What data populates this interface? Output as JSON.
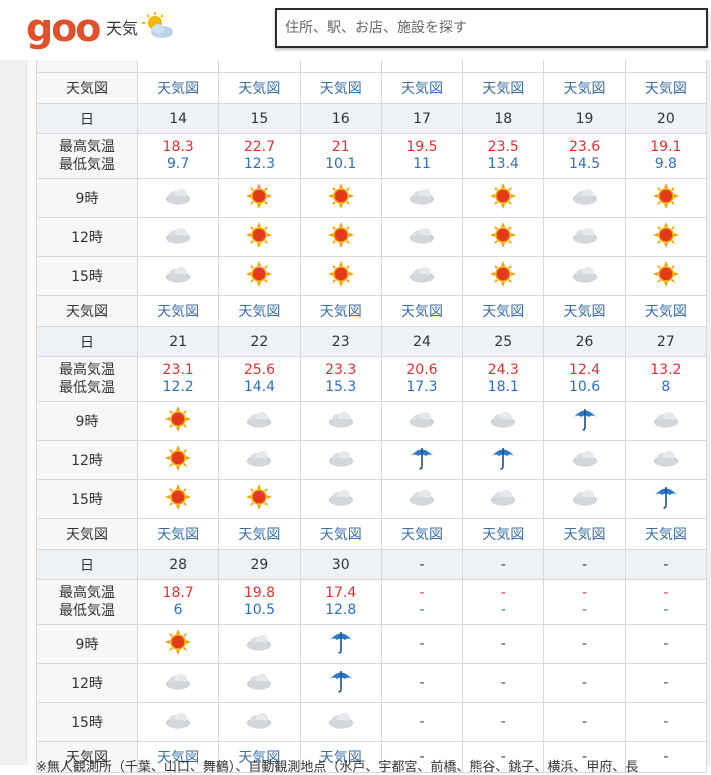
{
  "header": {
    "logo": "goo",
    "section": "天気",
    "search_placeholder": "住所、駅、お店、施設を探す"
  },
  "map_label": "天気図",
  "labels": {
    "day": "日",
    "high": "最高気温",
    "low": "最低気温",
    "h9": "9時",
    "h12": "12時",
    "h15": "15時",
    "map": "天気図"
  },
  "weeks": [
    {
      "days": [
        "14",
        "15",
        "16",
        "17",
        "18",
        "19",
        "20"
      ],
      "high": [
        "18.3",
        "22.7",
        "21",
        "19.5",
        "23.5",
        "23.6",
        "19.1"
      ],
      "low": [
        "9.7",
        "12.3",
        "10.1",
        "11",
        "13.4",
        "14.5",
        "9.8"
      ],
      "h9": [
        "cloud-icon",
        "sun-icon",
        "sun-icon",
        "cloud-icon",
        "sun-icon",
        "cloud-icon",
        "sun-icon"
      ],
      "h12": [
        "cloud-icon",
        "sun-icon",
        "sun-icon",
        "cloud-icon",
        "sun-icon",
        "cloud-icon",
        "sun-icon"
      ],
      "h15": [
        "cloud-icon",
        "sun-icon",
        "sun-icon",
        "cloud-icon",
        "sun-icon",
        "cloud-icon",
        "sun-icon"
      ],
      "map": [
        "天気図",
        "天気図",
        "天気図",
        "天気図",
        "天気図",
        "天気図",
        "天気図"
      ]
    },
    {
      "days": [
        "21",
        "22",
        "23",
        "24",
        "25",
        "26",
        "27"
      ],
      "high": [
        "23.1",
        "25.6",
        "23.3",
        "20.6",
        "24.3",
        "12.4",
        "13.2"
      ],
      "low": [
        "12.2",
        "14.4",
        "15.3",
        "17.3",
        "18.1",
        "10.6",
        "8"
      ],
      "h9": [
        "sun-icon",
        "cloud-icon",
        "cloud-icon",
        "cloud-icon",
        "cloud-icon",
        "umbrella-icon",
        "cloud-icon"
      ],
      "h12": [
        "sun-icon",
        "cloud-icon",
        "cloud-icon",
        "umbrella-icon",
        "umbrella-icon",
        "cloud-icon",
        "cloud-icon"
      ],
      "h15": [
        "sun-icon",
        "sun-icon",
        "cloud-icon",
        "cloud-icon",
        "cloud-icon",
        "cloud-icon",
        "umbrella-icon"
      ],
      "map": [
        "天気図",
        "天気図",
        "天気図",
        "天気図",
        "天気図",
        "天気図",
        "天気図"
      ]
    },
    {
      "days": [
        "28",
        "29",
        "30",
        "-",
        "-",
        "-",
        "-"
      ],
      "high": [
        "18.7",
        "19.8",
        "17.4",
        "-",
        "-",
        "-",
        "-"
      ],
      "low": [
        "6",
        "10.5",
        "12.8",
        "-",
        "-",
        "-",
        "-"
      ],
      "h9": [
        "sun-icon",
        "cloud-icon",
        "umbrella-icon",
        "-",
        "-",
        "-",
        "-"
      ],
      "h12": [
        "cloud-icon",
        "cloud-icon",
        "umbrella-icon",
        "-",
        "-",
        "-",
        "-"
      ],
      "h15": [
        "cloud-icon",
        "cloud-icon",
        "cloud-icon",
        "-",
        "-",
        "-",
        "-"
      ],
      "map": [
        "天気図",
        "天気図",
        "天気図",
        "-",
        "-",
        "-",
        "-"
      ]
    }
  ],
  "footer_note": "※無人観測所（千葉、山口、舞鶴）、自動観測地点（水戸、宇都宮、前橋、熊谷、銚子、横浜、甲府、長"
}
